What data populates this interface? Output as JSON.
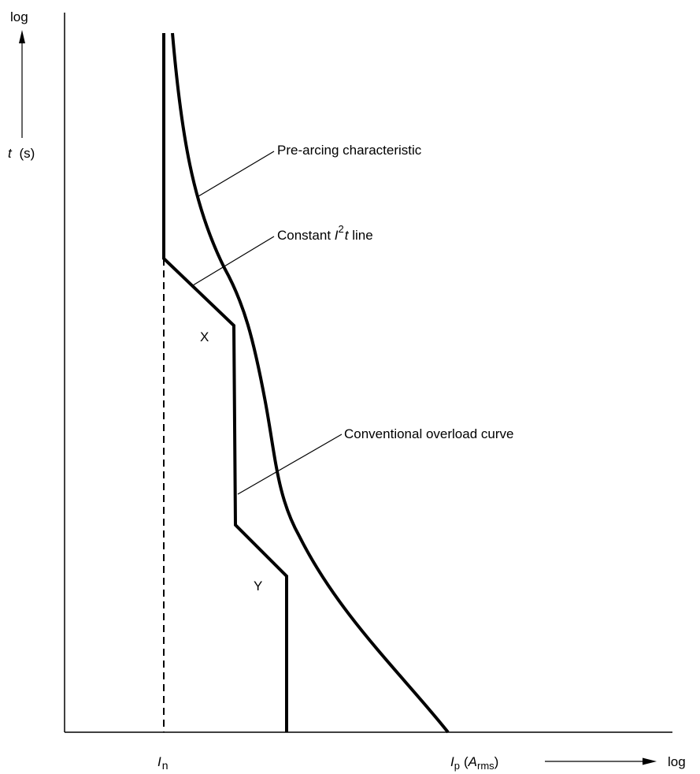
{
  "y_axis": {
    "scale_label": "log",
    "quantity_symbol": "t",
    "unit": "(s)"
  },
  "x_axis": {
    "scale_label": "log",
    "quantity_symbol": "I",
    "quantity_subscript": "p",
    "unit_open": "(",
    "unit_symbol": "A",
    "unit_subscript": "rms",
    "unit_close": ")"
  },
  "rated_current": {
    "symbol": "I",
    "subscript": "n"
  },
  "annotations": {
    "pre_arcing": "Pre-arcing characteristic",
    "constant_i2t_prefix": "Constant ",
    "constant_i2t_symbol": "I",
    "constant_i2t_exponent": "2",
    "constant_i2t_t": "t",
    "constant_i2t_suffix": " line",
    "overload": "Conventional overload curve"
  },
  "points": {
    "x": "X",
    "y": "Y"
  }
}
